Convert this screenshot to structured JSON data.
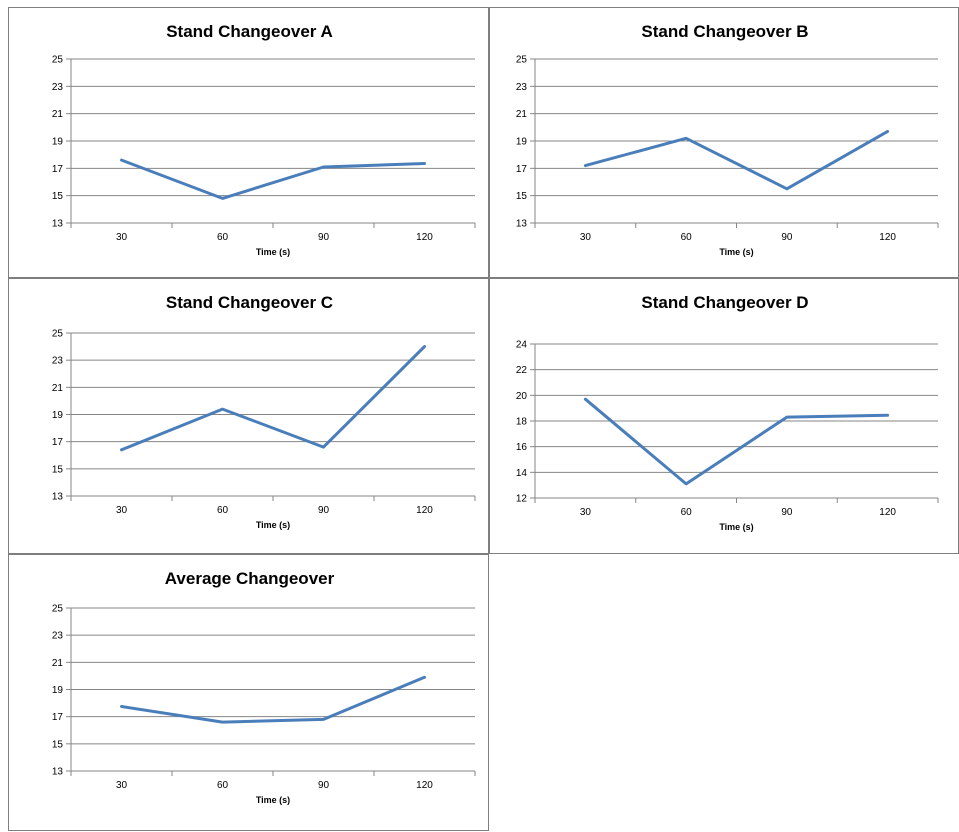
{
  "colors": {
    "series": "#4a7ebb",
    "grid": "#868686",
    "border": "#7f7f7f"
  },
  "chart_data": [
    {
      "type": "line",
      "title": "Stand Changeover A",
      "xlabel": "Time (s)",
      "ylabel": "",
      "categories": [
        "30",
        "60",
        "90",
        "120"
      ],
      "series": [
        {
          "values": [
            17.6,
            14.8,
            17.1,
            17.35
          ]
        }
      ],
      "ylim": [
        13,
        25
      ],
      "yticks": [
        13,
        15,
        17,
        19,
        21,
        23,
        25
      ],
      "grid": true,
      "legend": "none"
    },
    {
      "type": "line",
      "title": "Stand Changeover B",
      "xlabel": "Time (s)",
      "ylabel": "",
      "categories": [
        "30",
        "60",
        "90",
        "120"
      ],
      "series": [
        {
          "values": [
            17.2,
            19.2,
            15.5,
            19.7
          ]
        }
      ],
      "ylim": [
        13,
        25
      ],
      "yticks": [
        13,
        15,
        17,
        19,
        21,
        23,
        25
      ],
      "grid": true,
      "legend": "none"
    },
    {
      "type": "line",
      "title": "Stand Changeover C",
      "xlabel": "Time (s)",
      "ylabel": "",
      "categories": [
        "30",
        "60",
        "90",
        "120"
      ],
      "series": [
        {
          "values": [
            16.4,
            19.4,
            16.6,
            24.0
          ]
        }
      ],
      "ylim": [
        13,
        25
      ],
      "yticks": [
        13,
        15,
        17,
        19,
        21,
        23,
        25
      ],
      "grid": true,
      "legend": "none"
    },
    {
      "type": "line",
      "title": "Stand Changeover D",
      "xlabel": "Time (s)",
      "ylabel": "",
      "categories": [
        "30",
        "60",
        "90",
        "120"
      ],
      "series": [
        {
          "values": [
            19.7,
            13.1,
            18.3,
            18.45
          ]
        }
      ],
      "ylim": [
        12,
        24
      ],
      "yticks": [
        12,
        14,
        16,
        18,
        20,
        22,
        24
      ],
      "grid": true,
      "legend": "none"
    },
    {
      "type": "line",
      "title": "Average Changeover",
      "xlabel": "Time (s)",
      "ylabel": "",
      "categories": [
        "30",
        "60",
        "90",
        "120"
      ],
      "series": [
        {
          "values": [
            17.75,
            16.6,
            16.8,
            19.9
          ]
        }
      ],
      "ylim": [
        13,
        25
      ],
      "yticks": [
        13,
        15,
        17,
        19,
        21,
        23,
        25
      ],
      "grid": true,
      "legend": "none"
    }
  ]
}
